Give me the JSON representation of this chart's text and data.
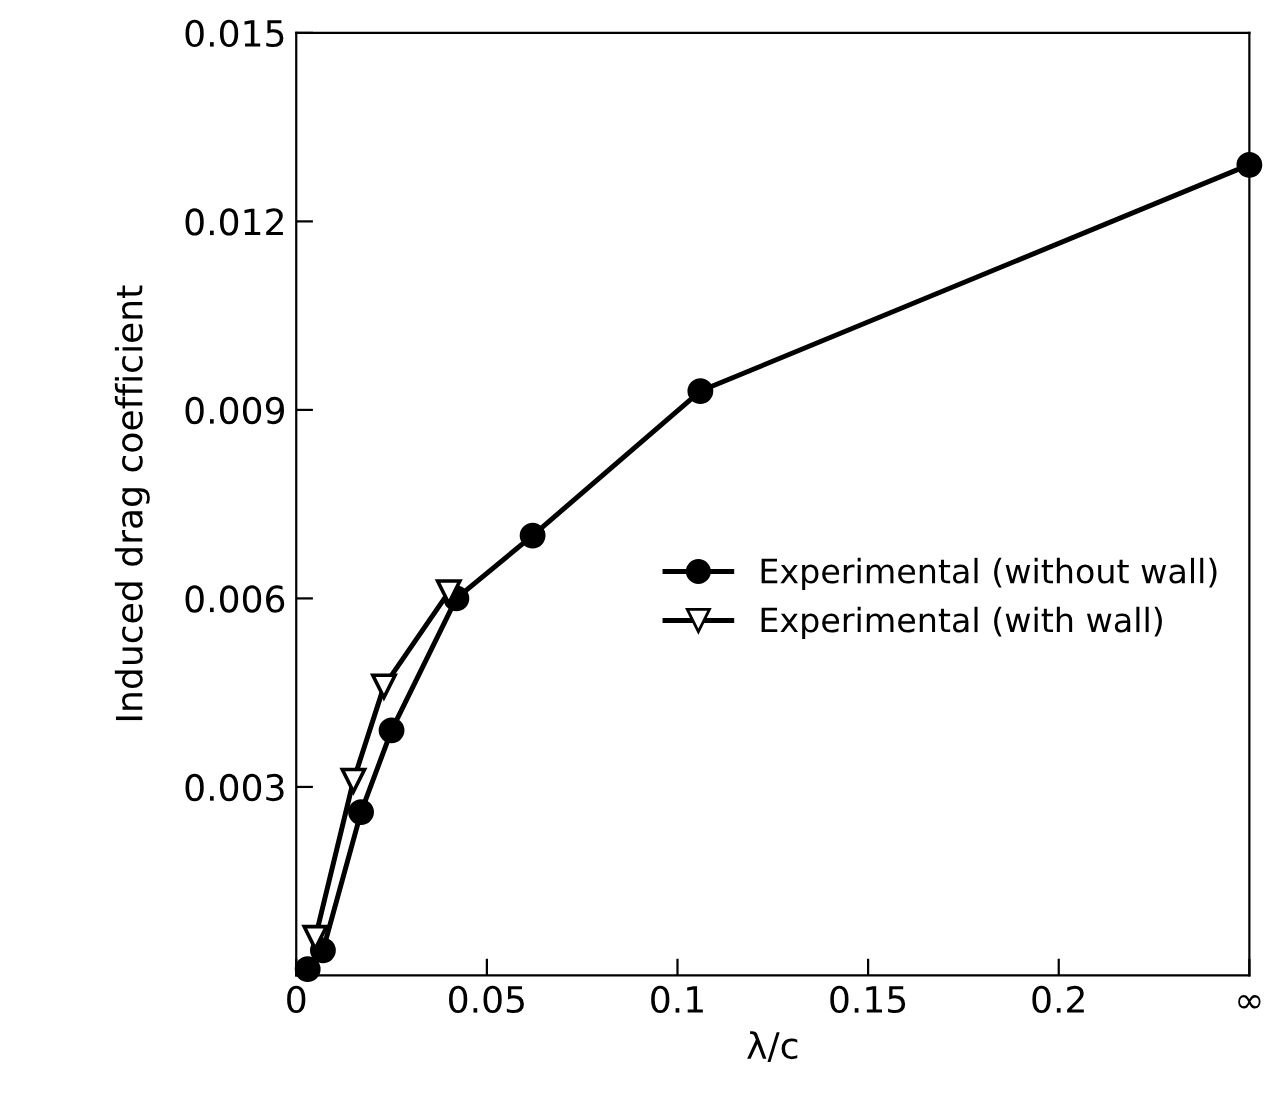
{
  "chart_data": {
    "type": "line",
    "xlabel": "λ/c",
    "ylabel": "Induced drag coefficient",
    "xlim": [
      0,
      0.25
    ],
    "ylim": [
      0,
      0.015
    ],
    "xticks": [
      0,
      0.05,
      0.1,
      0.15,
      0.2,
      {
        "value": 0.25,
        "label": "∞"
      }
    ],
    "yticks": [
      0.003,
      0.006,
      0.009,
      0.012,
      0.015
    ],
    "legend": "center right",
    "grid": false,
    "line_style": "solid",
    "series": [
      {
        "name": "Experimental (without wall)",
        "color": "#000000",
        "marker": "circle",
        "x": [
          0.003,
          0.007,
          0.017,
          0.025,
          0.042,
          0.062,
          0.106,
          0.25
        ],
        "values": [
          0.0001,
          0.0004,
          0.0026,
          0.0039,
          0.006,
          0.007,
          0.0093,
          0.0129
        ]
      },
      {
        "name": "Experimental (with wall)",
        "color": "#000000",
        "marker": "triangle",
        "x": [
          0.005,
          0.015,
          0.023,
          0.04
        ],
        "values": [
          0.0006,
          0.0031,
          0.0046,
          0.0061
        ]
      }
    ]
  }
}
